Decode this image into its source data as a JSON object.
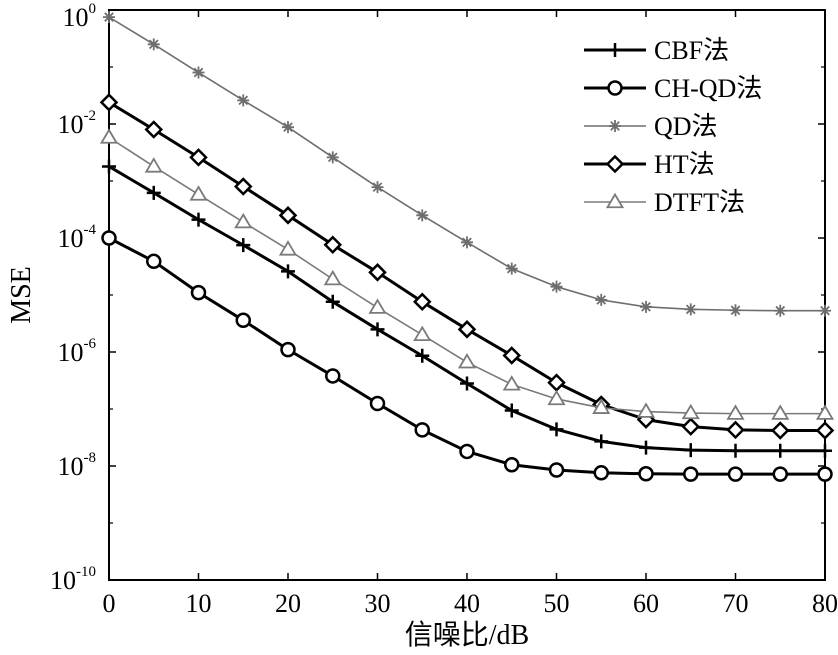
{
  "chart_data": {
    "type": "line",
    "xlabel": "信噪比/dB",
    "ylabel": "MSE",
    "xlim": [
      0,
      80
    ],
    "ylim": [
      1e-10,
      1
    ],
    "yscale": "log",
    "grid": false,
    "legend_position": "top-right",
    "x": [
      0,
      5,
      10,
      15,
      20,
      25,
      30,
      35,
      40,
      45,
      50,
      55,
      60,
      65,
      70,
      75,
      80
    ],
    "xticks": [
      "0",
      "10",
      "20",
      "30",
      "40",
      "50",
      "60",
      "70",
      "80"
    ],
    "yticks": [
      {
        "base": "10",
        "exp": "0"
      },
      {
        "base": "10",
        "exp": "-2"
      },
      {
        "base": "10",
        "exp": "-4"
      },
      {
        "base": "10",
        "exp": "-6"
      },
      {
        "base": "10",
        "exp": "-8"
      },
      {
        "base": "10",
        "exp": "-10"
      }
    ],
    "series": [
      {
        "name": "CBF法",
        "marker": "plus",
        "color": "#000000",
        "width": 3,
        "values": [
          0.0018,
          0.00062,
          0.00021,
          7.5e-05,
          2.6e-05,
          7.6e-06,
          2.5e-06,
          8.6e-07,
          2.8e-07,
          9.4e-08,
          4.4e-08,
          2.7e-08,
          2.1e-08,
          1.9e-08,
          1.85e-08,
          1.85e-08,
          1.85e-08
        ]
      },
      {
        "name": "CH-QD法",
        "marker": "circle",
        "color": "#000000",
        "width": 3,
        "values": [
          0.0001,
          3.9e-05,
          1.1e-05,
          3.6e-06,
          1.1e-06,
          3.8e-07,
          1.25e-07,
          4.3e-08,
          1.8e-08,
          1.05e-08,
          8.5e-09,
          7.6e-09,
          7.3e-09,
          7.2e-09,
          7.2e-09,
          7.2e-09,
          7.2e-09
        ]
      },
      {
        "name": "QD法",
        "marker": "star",
        "color": "#6e6e6e",
        "width": 1.6,
        "values": [
          0.75,
          0.25,
          0.08,
          0.026,
          0.0088,
          0.0026,
          0.00078,
          0.00025,
          8.4e-05,
          2.9e-05,
          1.4e-05,
          8.2e-06,
          6.2e-06,
          5.6e-06,
          5.4e-06,
          5.3e-06,
          5.3e-06
        ]
      },
      {
        "name": "HT法",
        "marker": "diamond",
        "color": "#000000",
        "width": 3,
        "values": [
          0.024,
          0.008,
          0.0026,
          0.0008,
          0.00025,
          7.6e-05,
          2.5e-05,
          7.6e-06,
          2.5e-06,
          8.7e-07,
          2.9e-07,
          1.2e-07,
          6.5e-08,
          4.9e-08,
          4.3e-08,
          4.2e-08,
          4.2e-08
        ]
      },
      {
        "name": "DTFT法",
        "marker": "triangle",
        "color": "#7a7a7a",
        "width": 1.6,
        "values": [
          0.0058,
          0.0018,
          0.00058,
          0.00019,
          6.3e-05,
          1.9e-05,
          6e-06,
          2e-06,
          6.6e-07,
          2.7e-07,
          1.5e-07,
          1.05e-07,
          9e-08,
          8.5e-08,
          8.3e-08,
          8.3e-08,
          8.3e-08
        ]
      }
    ]
  }
}
